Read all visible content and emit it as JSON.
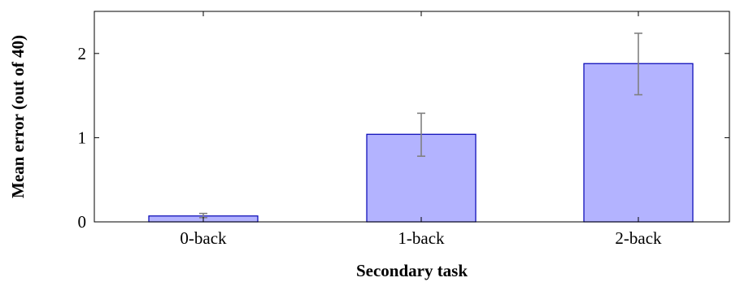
{
  "chart_data": {
    "type": "bar",
    "title": "",
    "xlabel": "Secondary task",
    "ylabel": "Mean error (out of 40)",
    "categories": [
      "0-back",
      "1-back",
      "2-back"
    ],
    "values": [
      0.07,
      1.04,
      1.88
    ],
    "error_low": [
      0.05,
      0.78,
      1.51
    ],
    "error_high": [
      0.1,
      1.29,
      2.24
    ],
    "ylim": [
      0,
      2.5
    ],
    "yticks": [
      0,
      1,
      2
    ],
    "ytick_labels": [
      "0",
      "1",
      "2"
    ],
    "grid": false,
    "colors": {
      "bar_fill": "#b3b3ff",
      "bar_stroke": "#0000b3",
      "error_bar": "#808080",
      "axis": "#000000"
    }
  }
}
